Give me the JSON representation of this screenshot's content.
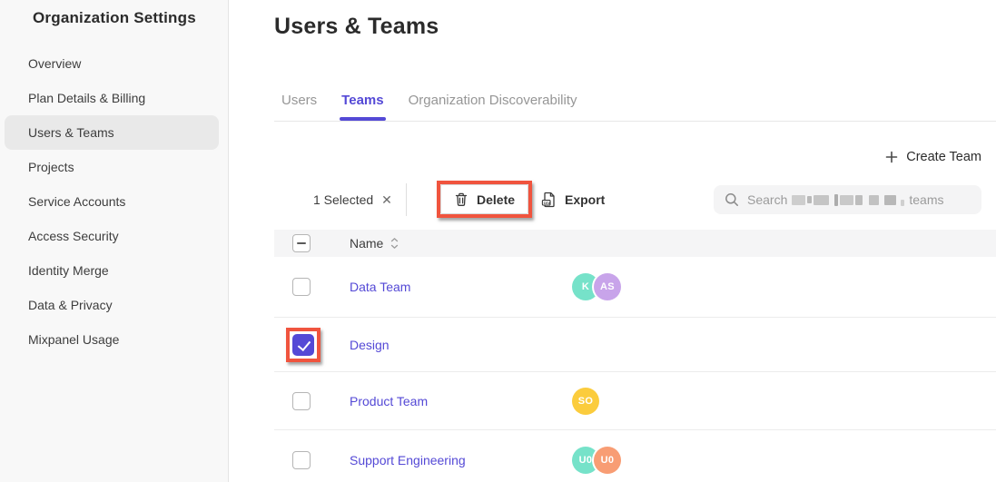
{
  "colors": {
    "accent": "#5449d6",
    "annotation": "#f0543e",
    "sidebar-bg": "#f8f8f8",
    "selected-bg": "#e9e9e9",
    "table-header-bg": "#f5f5f6",
    "border": "#e7e7e7",
    "text-dark": "#2b2b2b",
    "text-body": "#3d3d3d",
    "text-muted": "#969696"
  },
  "sidebar": {
    "title": "Organization Settings",
    "items": [
      {
        "label": "Overview",
        "active": false
      },
      {
        "label": "Plan Details & Billing",
        "active": false
      },
      {
        "label": "Users & Teams",
        "active": true
      },
      {
        "label": "Projects",
        "active": false
      },
      {
        "label": "Service Accounts",
        "active": false
      },
      {
        "label": "Access Security",
        "active": false
      },
      {
        "label": "Identity Merge",
        "active": false
      },
      {
        "label": "Data & Privacy",
        "active": false
      },
      {
        "label": "Mixpanel Usage",
        "active": false
      }
    ]
  },
  "header": {
    "title": "Users & Teams"
  },
  "tabs": [
    {
      "label": "Users",
      "active": false
    },
    {
      "label": "Teams",
      "active": true
    },
    {
      "label": "Organization Discoverability",
      "active": false
    }
  ],
  "actions": {
    "create_team_label": "Create Team"
  },
  "toolbar": {
    "selected_text": "1 Selected",
    "delete_label": "Delete",
    "export_label": "Export",
    "export_icon_text": "csv",
    "search": {
      "placeholder_prefix": "Search",
      "placeholder_suffix": "teams",
      "middle_redacted": true
    }
  },
  "table": {
    "header": {
      "name_label": "Name"
    },
    "rows": [
      {
        "name": "Data Team",
        "checked": false,
        "avatars": [
          {
            "initials": "K",
            "color": "#76e2c9"
          },
          {
            "initials": "AS",
            "color": "#c8a4ea"
          }
        ]
      },
      {
        "name": "Design",
        "checked": true,
        "annotated": true,
        "avatars": []
      },
      {
        "name": "Product Team",
        "checked": false,
        "avatars": [
          {
            "initials": "SO",
            "color": "#fbcc3d"
          }
        ]
      },
      {
        "name": "Support Engineering",
        "checked": false,
        "avatars": [
          {
            "initials": "U0",
            "color": "#76e2c9"
          },
          {
            "initials": "U0",
            "color": "#f89d74"
          }
        ]
      }
    ]
  },
  "annotations": {
    "color": "#f0543e",
    "targets": [
      "delete-button",
      "design-row-checkbox"
    ]
  }
}
